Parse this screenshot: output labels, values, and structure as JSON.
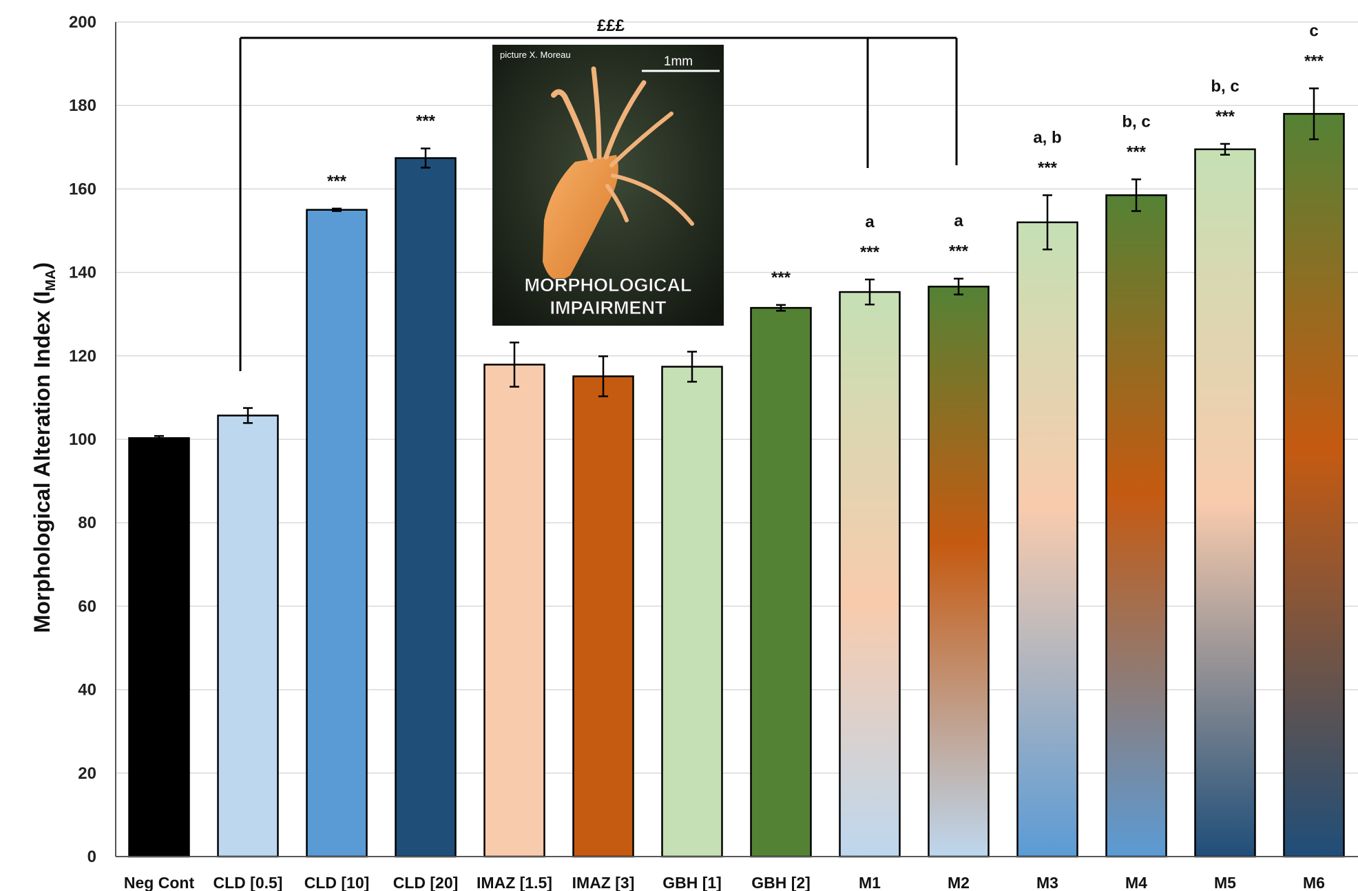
{
  "chart_data": {
    "type": "bar",
    "ylabel_main": "Morphological Alteration Index (I",
    "ylabel_sub": "MA",
    "ylabel_end": ")",
    "ylim": [
      0,
      200
    ],
    "yticks": [
      "0",
      "20",
      "40",
      "60",
      "80",
      "100",
      "120",
      "140",
      "160",
      "180",
      "200"
    ],
    "grid": true,
    "categories": [
      "Neg Cont",
      "CLD [0.5]",
      "CLD [10]",
      "CLD [20]",
      "IMAZ [1.5]",
      "IMAZ [3]",
      "GBH [1]",
      "GBH [2]",
      "M1",
      "M2",
      "M3",
      "M4",
      "M5",
      "M6"
    ],
    "values": [
      100.3,
      105.7,
      155.0,
      167.4,
      117.9,
      115.1,
      117.4,
      131.5,
      135.3,
      136.6,
      152.0,
      158.5,
      169.5,
      178.0
    ],
    "errors": [
      0.5,
      1.8,
      0.3,
      2.3,
      5.3,
      4.8,
      3.6,
      0.7,
      3.0,
      1.9,
      6.5,
      3.8,
      1.3,
      6.1
    ],
    "significance": [
      "",
      "",
      "***",
      "***",
      "",
      "",
      "",
      "***",
      "***",
      "***",
      "***",
      "***",
      "***",
      "***"
    ],
    "letters": [
      "",
      "",
      "",
      "",
      "",
      "",
      "",
      "",
      "a",
      "a",
      "a, b",
      "b, c",
      "b, c",
      "c"
    ],
    "bracket_label": "£££",
    "colors": {
      "neg": "#000000",
      "cld1": "#bdd7ee",
      "cld2": "#5b9bd5",
      "cld3": "#1f4e79",
      "imaz1": "#f8cbad",
      "imaz2": "#c55a11",
      "gbh1": "#c5e0b4",
      "gbh2": "#548235"
    },
    "inset": {
      "credit": "picture X. Moreau",
      "scale": "1mm",
      "title_line1": "MORPHOLOGICAL",
      "title_line2": "IMPAIRMENT"
    }
  }
}
